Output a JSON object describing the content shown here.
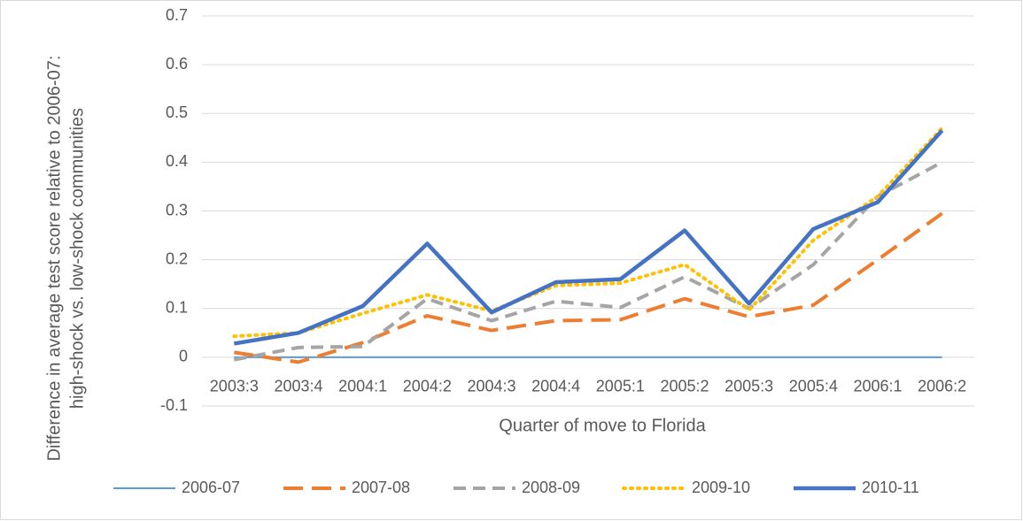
{
  "chart_data": {
    "type": "line",
    "categories": [
      "2003:3",
      "2003:4",
      "2004:1",
      "2004:2",
      "2004:3",
      "2004:4",
      "2005:1",
      "2005:2",
      "2005:3",
      "2005:4",
      "2006:1",
      "2006:2"
    ],
    "series": [
      {
        "name": "2006-07",
        "color": "#5b9bd5",
        "values": [
          0,
          0,
          0,
          0,
          0,
          0,
          0,
          0,
          0,
          0,
          0,
          0
        ]
      },
      {
        "name": "2007-08",
        "color": "#ed7d31",
        "values": [
          0.01,
          -0.01,
          0.03,
          0.085,
          0.055,
          0.075,
          0.077,
          0.12,
          0.083,
          0.107,
          0.2,
          0.295
        ]
      },
      {
        "name": "2008-09",
        "color": "#a5a5a5",
        "values": [
          -0.005,
          0.02,
          0.022,
          0.12,
          0.075,
          0.115,
          0.102,
          0.165,
          0.1,
          0.19,
          0.33,
          0.4
        ]
      },
      {
        "name": "2009-10",
        "color": "#ffc000",
        "values": [
          0.043,
          0.05,
          0.09,
          0.128,
          0.095,
          0.147,
          0.152,
          0.19,
          0.097,
          0.24,
          0.33,
          0.47
        ]
      },
      {
        "name": "2010-11",
        "color": "#4472c4",
        "values": [
          0.028,
          0.05,
          0.105,
          0.233,
          0.092,
          0.154,
          0.16,
          0.26,
          0.11,
          0.263,
          0.318,
          0.465
        ]
      }
    ],
    "xlabel": "Quarter of move to Florida",
    "ylabel": [
      "Difference in average test score relative to 2006-07:",
      "high-shock vs. low-shock communities"
    ],
    "ylim": [
      -0.1,
      0.7
    ],
    "yticks": [
      -0.1,
      0,
      0.1,
      0.2,
      0.3,
      0.4,
      0.5,
      0.6,
      0.7
    ],
    "grid": true,
    "legend": "bottom"
  }
}
